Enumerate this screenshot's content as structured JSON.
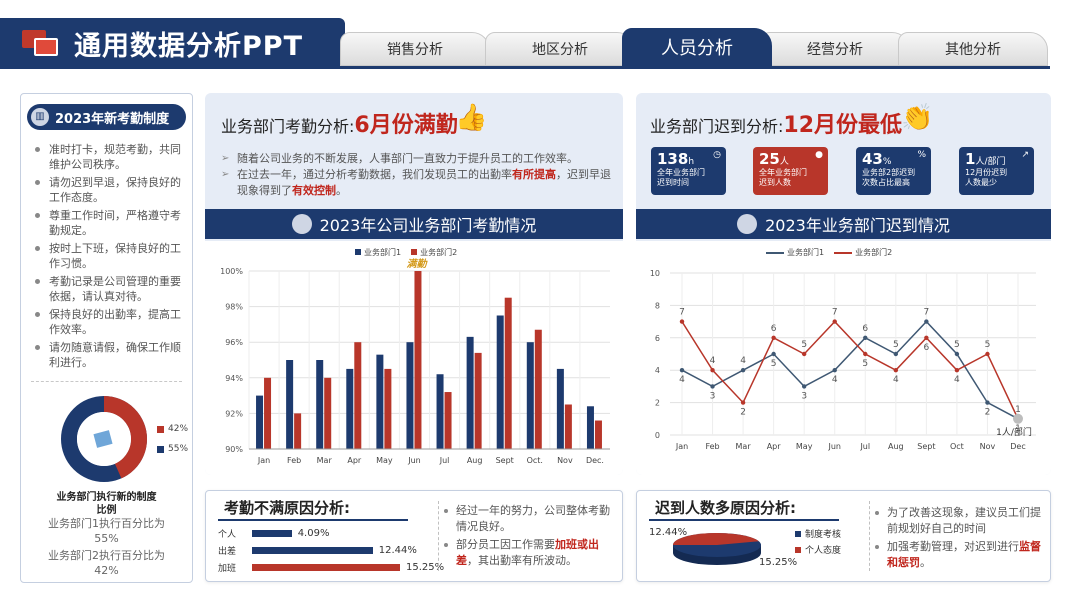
{
  "header": {
    "title": "通用数据分析PPT",
    "tabs": [
      {
        "label": "销售分析",
        "active": false
      },
      {
        "label": "地区分析",
        "active": false
      },
      {
        "label": "人员分析",
        "active": true
      },
      {
        "label": "经营分析",
        "active": false
      },
      {
        "label": "其他分析",
        "active": false
      }
    ]
  },
  "left": {
    "title": "2023年新考勤制度",
    "rules": [
      "准时打卡，规范考勤，共同维护公司秩序。",
      "请勿迟到早退，保持良好的工作态度。",
      "尊重工作时间，严格遵守考勤规定。",
      "按时上下班，保持良好的工作习惯。",
      "考勤记录是公司管理的重要依据，请认真对待。",
      "保持良好的出勤率，提高工作效率。",
      "请勿随意请假，确保工作顺利进行。"
    ],
    "donut_legend": [
      "42%",
      "55%"
    ],
    "donut_values": [
      42,
      55
    ],
    "caption_line1": "业务部门执行新的制度",
    "caption_line2": "比例",
    "share1_line1": "业务部门1执行百分比为",
    "share1_line2": "55%",
    "share2_line1": "业务部门2执行百分比为",
    "share2_line2": "42%"
  },
  "attendance": {
    "heading_prefix": "业务部门考勤分析:",
    "heading_highlight": "6月份满勤",
    "bullet1": "随着公司业务的不断发展，人事部门一直致力于提升员工的工作效率。",
    "bullet2_pre": "在过去一年，通过分析考勤数据，我们发现员工的出勤率",
    "bullet2_em1": "有所提高",
    "bullet2_mid": "，迟到早退现象得到了",
    "bullet2_em2": "有效控制",
    "bullet2_end": "。",
    "section_title": "2023年公司业务部门考勤情况"
  },
  "late": {
    "heading_prefix": "业务部门迟到分析:",
    "heading_highlight": "12月份最低",
    "section_title": "2023年业务部门迟到情况",
    "stats": [
      {
        "value": "138",
        "unit": "h",
        "desc1": "全年业务部门",
        "desc2": "迟到时间",
        "corner": "◷",
        "red": false
      },
      {
        "value": "25",
        "unit": "人",
        "desc1": "全年业务部门",
        "desc2": "迟到人数",
        "corner": "●",
        "red": true
      },
      {
        "value": "43",
        "unit": "%",
        "desc1": "业务部2部迟到",
        "desc2": "次数占比最高",
        "corner": "%",
        "red": false
      },
      {
        "value": "1",
        "unit": "人/部门",
        "desc1": "12月份迟到",
        "desc2": "人数最少",
        "corner": "↗",
        "red": false
      }
    ]
  },
  "chart_data": [
    {
      "type": "bar",
      "title": "2023年公司业务部门考勤情况",
      "categories": [
        "Jan",
        "Feb",
        "Mar",
        "Apr",
        "May",
        "Jun",
        "Jul",
        "Aug",
        "Sept",
        "Oct.",
        "Nov",
        "Dec."
      ],
      "series": [
        {
          "name": "业务部门1",
          "color": "#1d3a6e",
          "values": [
            93.0,
            95.0,
            95.0,
            94.5,
            95.3,
            96.0,
            94.2,
            96.3,
            97.5,
            96.0,
            94.5,
            92.4
          ]
        },
        {
          "name": "业务部门2",
          "color": "#b8362a",
          "values": [
            94.0,
            92.0,
            94.0,
            96.0,
            94.5,
            100.0,
            93.2,
            95.4,
            98.5,
            96.7,
            92.5,
            91.6
          ]
        }
      ],
      "ylim": [
        90,
        100
      ],
      "yticks": [
        "90%",
        "92%",
        "94%",
        "96%",
        "98%",
        "100%"
      ],
      "annotation": "满勤",
      "legend": "top"
    },
    {
      "type": "line",
      "title": "2023年业务部门迟到情况",
      "categories": [
        "Jan",
        "Feb",
        "Mar",
        "Apr",
        "May",
        "Jun",
        "Jul",
        "Aug",
        "Sept",
        "Oct",
        "Nov",
        "Dec"
      ],
      "series": [
        {
          "name": "业务部门1",
          "color": "#3f5873",
          "values": [
            4,
            3,
            4,
            5,
            3,
            4,
            6,
            5,
            7,
            5,
            2,
            1
          ]
        },
        {
          "name": "业务部门2",
          "color": "#b8362a",
          "values": [
            7,
            4,
            2,
            6,
            5,
            7,
            5,
            4,
            6,
            4,
            5,
            1
          ]
        }
      ],
      "ylim": [
        0,
        10
      ],
      "yticks": [
        "0",
        "2",
        "4",
        "6",
        "8",
        "10"
      ],
      "annotation": "1人/部门",
      "legend": "top"
    },
    {
      "type": "bar",
      "title": "考勤不满原因分析",
      "categories": [
        "个人",
        "出差",
        "加班"
      ],
      "values": [
        4.09,
        12.44,
        15.25
      ],
      "labels": [
        "4.09%",
        "12.44%",
        "15.25%"
      ]
    },
    {
      "type": "pie",
      "title": "迟到人数多原因分析",
      "slices": [
        {
          "name": "制度考核",
          "value": 15.25,
          "color": "#1d3a6e"
        },
        {
          "name": "个人态度",
          "value": 12.44,
          "color": "#b8362a"
        }
      ],
      "labels": [
        "12.44%",
        "15.25%"
      ]
    }
  ],
  "bottom_left": {
    "title": "考勤不满原因分析:",
    "notes": [
      "经过一年的努力，公司整体考勤情况良好。"
    ],
    "note2_pre": "部分员工因工作需要",
    "note2_em": "加班或出差",
    "note2_end": "，其出勤率有所波动。"
  },
  "bottom_right": {
    "title": "迟到人数多原因分析:",
    "note1": "为了改善这现象，建议员工们提前规划好自己的时间",
    "note2_pre": "加强考勤管理，对迟到进行",
    "note2_em": "监督和惩罚",
    "note2_end": "。"
  },
  "colors": {
    "navy": "#1d3a6e",
    "red": "#b8362a",
    "panel": "#e6ecf6"
  }
}
